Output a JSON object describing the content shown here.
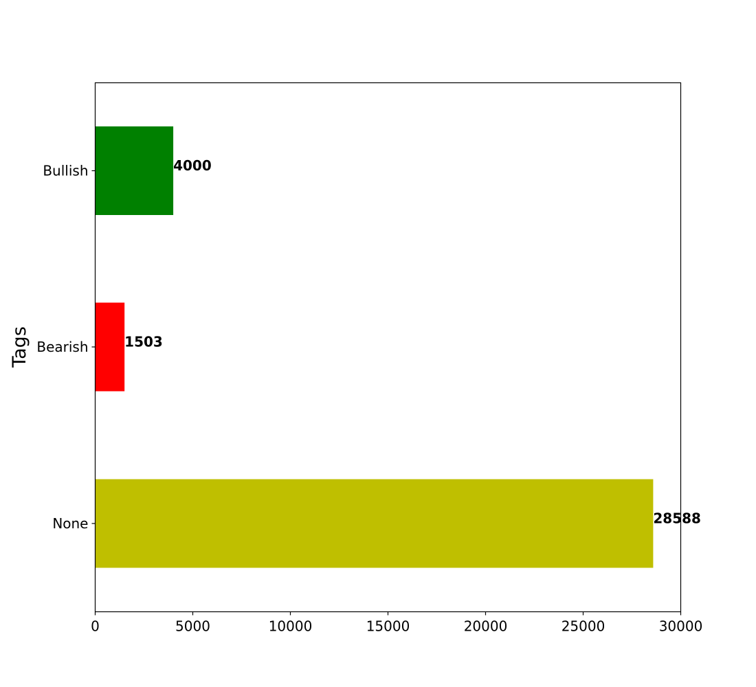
{
  "chart_data": {
    "type": "bar",
    "orientation": "horizontal",
    "categories": [
      "Bullish",
      "Bearish",
      "None"
    ],
    "values": [
      4000,
      1503,
      28588
    ],
    "colors": [
      "#008000",
      "#ff0000",
      "#bfbf00"
    ],
    "xlabel": "",
    "ylabel": "Tags",
    "xlim": [
      0,
      30000
    ],
    "xticks": [
      0,
      5000,
      10000,
      15000,
      20000,
      25000,
      30000
    ],
    "data_labels": [
      "4000",
      "1503",
      "28588"
    ],
    "grid": false,
    "legend": "none"
  }
}
